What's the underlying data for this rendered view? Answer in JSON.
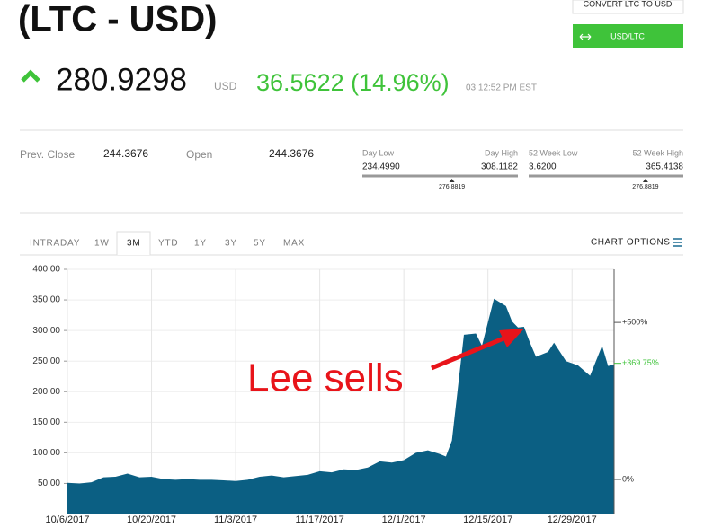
{
  "header": {
    "title": "(LTC - USD)",
    "convert": "CONVERT LTC TO USD",
    "toggle": "USD/LTC"
  },
  "quote": {
    "price": "280.9298",
    "currency": "USD",
    "change": "36.5622 (14.96%)",
    "time": "03:12:52 PM EST"
  },
  "stats": {
    "prev_close_label": "Prev. Close",
    "prev_close": "244.3676",
    "open_label": "Open",
    "open": "244.3676"
  },
  "ranges": [
    {
      "low_label": "Day Low",
      "high_label": "Day High",
      "low": "234.4990",
      "high": "308.1182",
      "current": "276.8819"
    },
    {
      "low_label": "52 Week Low",
      "high_label": "52 Week High",
      "low": "3.6200",
      "high": "365.4138",
      "current": "276.8819"
    }
  ],
  "tabs": [
    "INTRADAY",
    "1W",
    "3M",
    "YTD",
    "1Y",
    "3Y",
    "5Y",
    "MAX"
  ],
  "active_tab": 2,
  "chart_options": "CHART OPTIONS",
  "chart_data": {
    "type": "area",
    "color": "#0b5f83",
    "x": [
      "10/6/2017",
      "10/8/2017",
      "10/10/2017",
      "10/12/2017",
      "10/14/2017",
      "10/16/2017",
      "10/18/2017",
      "10/20/2017",
      "10/22/2017",
      "10/24/2017",
      "10/26/2017",
      "10/28/2017",
      "10/30/2017",
      "11/1/2017",
      "11/3/2017",
      "11/5/2017",
      "11/7/2017",
      "11/9/2017",
      "11/11/2017",
      "11/13/2017",
      "11/15/2017",
      "11/17/2017",
      "11/19/2017",
      "11/21/2017",
      "11/23/2017",
      "11/25/2017",
      "11/27/2017",
      "11/29/2017",
      "12/1/2017",
      "12/3/2017",
      "12/5/2017",
      "12/7/2017",
      "12/8/2017",
      "12/9/2017",
      "12/11/2017",
      "12/13/2017",
      "12/14/2017",
      "12/16/2017",
      "12/18/2017",
      "12/19/2017",
      "12/20/2017",
      "12/21/2017",
      "12/22/2017",
      "12/23/2017",
      "12/25/2017",
      "12/26/2017",
      "12/28/2017",
      "12/30/2017",
      "1/1/2018",
      "1/3/2018",
      "1/4/2018",
      "1/5/2018"
    ],
    "values": [
      51,
      50,
      52,
      60,
      61,
      66,
      60,
      61,
      57,
      56,
      57,
      56,
      56,
      55,
      54,
      56,
      61,
      63,
      60,
      62,
      64,
      70,
      68,
      73,
      72,
      76,
      86,
      84,
      88,
      100,
      104,
      98,
      94,
      120,
      293,
      295,
      275,
      352,
      340,
      315,
      305,
      306,
      280,
      257,
      265,
      280,
      250,
      243,
      226,
      275,
      242,
      244
    ],
    "xlim": [
      "10/6/2017",
      "1/5/2018"
    ],
    "xticks": [
      "10/6/2017",
      "10/20/2017",
      "11/3/2017",
      "11/17/2017",
      "12/1/2017",
      "12/15/2017",
      "12/29/2017"
    ],
    "ylim": [
      0,
      400
    ],
    "yticks": [
      {
        "value": 50,
        "label": "50.00"
      },
      {
        "value": 100,
        "label": "100.00"
      },
      {
        "value": 150,
        "label": "150.00"
      },
      {
        "value": 200,
        "label": "200.00"
      },
      {
        "value": 250,
        "label": "250.00"
      },
      {
        "value": 300,
        "label": "300.00"
      },
      {
        "value": 350,
        "label": "350.00"
      },
      {
        "value": 400,
        "label": "400.00"
      }
    ],
    "y2lim": [
      -110,
      669
    ],
    "y2ticks": [
      {
        "value": 0,
        "label": "0%"
      },
      {
        "value": 500,
        "label": "+500%"
      }
    ],
    "y2_current": {
      "value": 369.75,
      "label": "+369.75%"
    },
    "grid": true,
    "annotation": "Lee sells"
  }
}
